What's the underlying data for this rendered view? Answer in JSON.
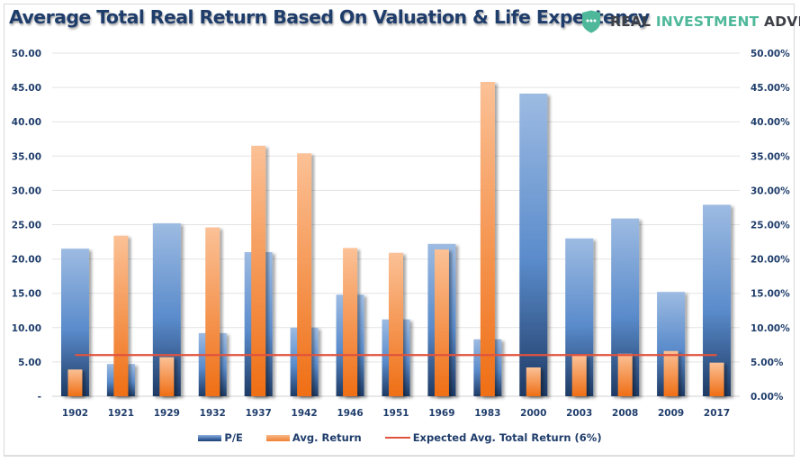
{
  "header": {
    "title": "Average Total Real Return Based On Valuation & Life Expectency",
    "brand": {
      "icon": "shield-dots-icon",
      "word1": "REAL",
      "word2": "INVESTMENT",
      "word3": "ADVICE",
      "accent_color": "#4fb89a"
    }
  },
  "legend": {
    "pe_label": "P/E",
    "return_label": "Avg. Return",
    "expected_label": "Expected Avg. Total Return (6%)"
  },
  "chart_data": {
    "type": "bar",
    "title": "Average Total Real Return Based On Valuation & Life Expectency",
    "xlabel": "",
    "ylabel_left": "",
    "ylabel_right": "",
    "categories": [
      "1902",
      "1921",
      "1929",
      "1932",
      "1937",
      "1942",
      "1946",
      "1951",
      "1969",
      "1983",
      "2000",
      "2003",
      "2008",
      "2009",
      "2017"
    ],
    "series": [
      {
        "name": "P/E",
        "type": "bar",
        "axis": "left",
        "color": "#4a7bbf",
        "values": [
          21.5,
          4.7,
          25.2,
          9.2,
          21.0,
          10.0,
          14.8,
          11.2,
          22.2,
          8.3,
          44.1,
          23.0,
          25.9,
          15.2,
          27.9
        ]
      },
      {
        "name": "Avg. Return",
        "type": "bar",
        "axis": "right",
        "unit": "%",
        "color": "#f08030",
        "values": [
          3.9,
          23.4,
          5.7,
          24.6,
          36.5,
          35.4,
          21.6,
          20.9,
          21.4,
          45.8,
          4.2,
          5.9,
          6.2,
          6.6,
          4.9
        ]
      },
      {
        "name": "Expected Avg. Total Return (6%)",
        "type": "line",
        "axis": "right",
        "unit": "%",
        "color": "#e0533d",
        "values": [
          6,
          6,
          6,
          6,
          6,
          6,
          6,
          6,
          6,
          6,
          6,
          6,
          6,
          6,
          6
        ]
      }
    ],
    "y_left": {
      "range": [
        0,
        50
      ],
      "ticks": [
        "-",
        "5.00",
        "10.00",
        "15.00",
        "20.00",
        "25.00",
        "30.00",
        "35.00",
        "40.00",
        "45.00",
        "50.00"
      ]
    },
    "y_right": {
      "range": [
        0,
        50
      ],
      "ticks": [
        "0.00%",
        "5.00%",
        "10.00%",
        "15.00%",
        "20.00%",
        "25.00%",
        "30.00%",
        "35.00%",
        "40.00%",
        "45.00%",
        "50.00%"
      ]
    },
    "grid": true,
    "legend_position": "bottom"
  }
}
